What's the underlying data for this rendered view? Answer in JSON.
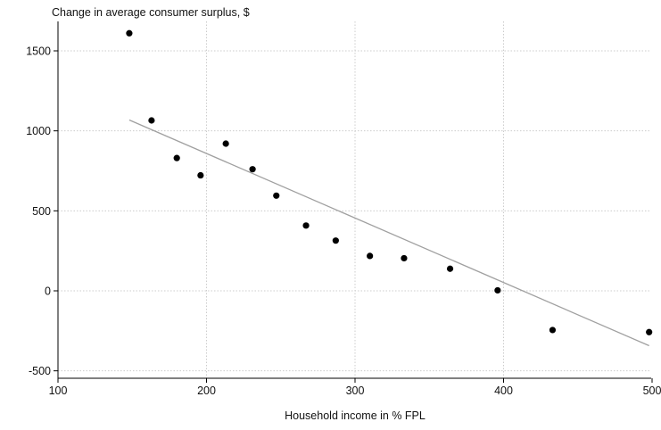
{
  "chart_data": {
    "type": "scatter",
    "title": "Change in average consumer surplus, $",
    "xlabel": "Household income in % FPL",
    "ylabel": "",
    "xlim": [
      100,
      500
    ],
    "ylim": [
      -550,
      1700
    ],
    "x_ticks": [
      100,
      200,
      300,
      400,
      500
    ],
    "y_ticks": [
      -500,
      0,
      500,
      1000,
      1500
    ],
    "grid": true,
    "legend": "none",
    "series": [
      {
        "x": [
          148,
          163,
          180,
          196,
          213,
          231,
          247,
          267,
          287,
          310,
          333,
          364,
          396,
          433,
          498
        ],
        "y": [
          1610,
          1065,
          830,
          722,
          920,
          760,
          595,
          408,
          314,
          218,
          204,
          138,
          3,
          -245,
          -258
        ]
      }
    ],
    "fit_line": {
      "x": [
        148,
        498
      ],
      "y": [
        1068,
        -343
      ]
    },
    "colors": {
      "points": "#000000",
      "fit_line": "#a0a0a0",
      "grid": "#cccccc",
      "axis": "#000000"
    }
  }
}
